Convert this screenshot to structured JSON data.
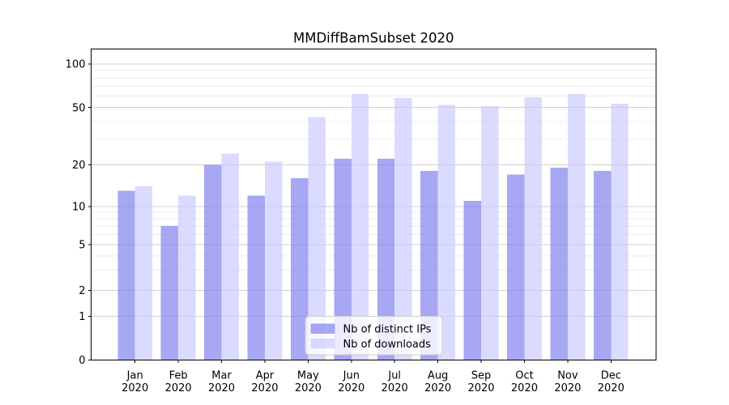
{
  "chart_data": {
    "type": "bar",
    "title": "MMDiffBamSubset 2020",
    "categories": [
      "Jan",
      "Feb",
      "Mar",
      "Apr",
      "May",
      "Jun",
      "Jul",
      "Aug",
      "Sep",
      "Oct",
      "Nov",
      "Dec"
    ],
    "category_year": "2020",
    "series": [
      {
        "name": "Nb of distinct IPs",
        "color": "#8282f0",
        "opacity": 0.7,
        "values": [
          13,
          7,
          20,
          12,
          16,
          22,
          22,
          18,
          11,
          17,
          19,
          18
        ]
      },
      {
        "name": "Nb of downloads",
        "color": "#ccccff",
        "opacity": 0.7,
        "values": [
          14,
          12,
          24,
          21,
          43,
          62,
          58,
          52,
          51,
          59,
          62,
          53
        ]
      }
    ],
    "yscale": "symlog",
    "ylim": [
      0,
      127
    ],
    "y_ticks": [
      0,
      1,
      2,
      5,
      10,
      20,
      50,
      100
    ],
    "y_minor_ticks": [
      3,
      4,
      6,
      7,
      8,
      9,
      30,
      40,
      60,
      70,
      80,
      90
    ],
    "xlabel": "",
    "ylabel": "",
    "grid": true,
    "legend": {
      "position": "lower center",
      "entries": [
        "Nb of distinct IPs",
        "Nb of downloads"
      ]
    },
    "style_colors": {
      "major_grid": "#d0d0d0",
      "minor_grid": "#ececec",
      "spine": "#000000",
      "legend_border": "#cccccc",
      "legend_background": "rgba(255,255,255,0.8)"
    }
  }
}
